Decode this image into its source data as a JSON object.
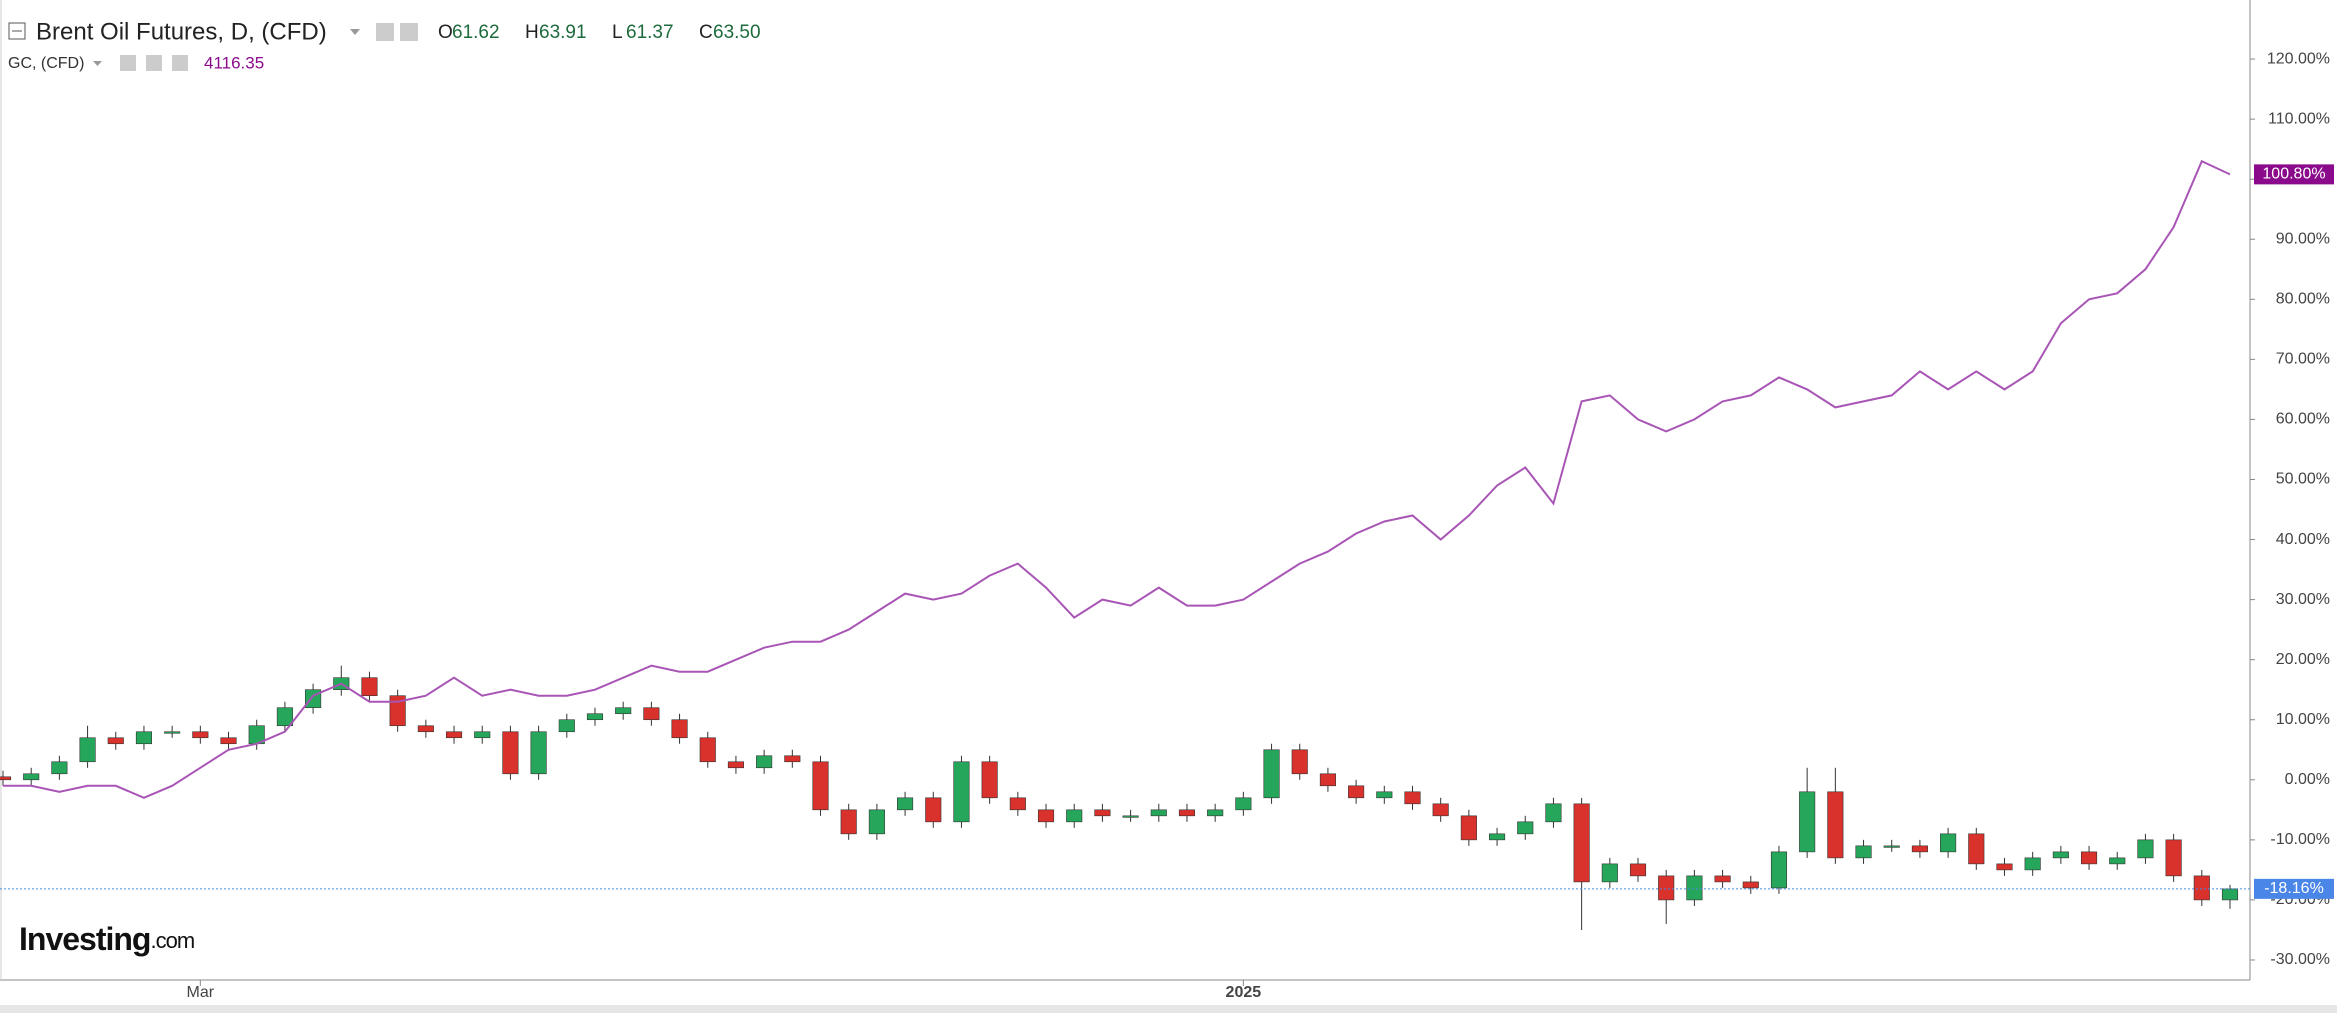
{
  "chart_data": {
    "type": "candlestick",
    "header": {
      "symbol": "Brent Oil Futures, D, (CFD)",
      "ohlc_labels": [
        "O",
        "H",
        "L",
        "C"
      ],
      "ohlc_values": [
        "61.62",
        "63.91",
        "61.37",
        "63.50"
      ],
      "compare_symbol": "GC, (CFD)",
      "compare_value": "4116.35"
    },
    "watermark": "Investing",
    "watermark_suffix": ".com",
    "categories": [
      null,
      null,
      null,
      null,
      null,
      null,
      null,
      "Mar",
      null,
      null,
      null,
      null,
      null,
      null,
      null,
      null,
      null,
      null,
      null,
      null,
      null,
      null,
      null,
      null,
      null,
      null,
      null,
      null,
      null,
      null,
      null,
      null,
      null,
      null,
      null,
      null,
      null,
      null,
      null,
      null,
      null,
      null,
      null,
      null,
      "2025",
      null,
      null,
      null,
      null,
      null,
      null,
      null,
      null,
      null,
      null,
      null,
      null,
      null,
      null,
      null,
      null,
      null,
      null,
      null,
      null,
      null,
      null,
      null,
      null,
      null,
      null,
      null,
      null,
      null,
      null,
      null,
      null,
      null,
      null,
      null
    ],
    "ylim": [
      -33,
      129
    ],
    "yticks": [
      {
        "value": -30,
        "label": "-30.00%"
      },
      {
        "value": -20,
        "label": "-20.00%"
      },
      {
        "value": -10,
        "label": "-10.00%"
      },
      {
        "value": 0,
        "label": "0.00%"
      },
      {
        "value": 10,
        "label": "10.00%"
      },
      {
        "value": 20,
        "label": "20.00%"
      },
      {
        "value": 30,
        "label": "30.00%"
      },
      {
        "value": 40,
        "label": "40.00%"
      },
      {
        "value": 50,
        "label": "50.00%"
      },
      {
        "value": 60,
        "label": "60.00%"
      },
      {
        "value": 70,
        "label": "70.00%"
      },
      {
        "value": 80,
        "label": "80.00%"
      },
      {
        "value": 90,
        "label": "90.00%"
      },
      {
        "value": 100,
        "label": "100.00%"
      },
      {
        "value": 110,
        "label": "110.00%"
      },
      {
        "value": 120,
        "label": "120.00%"
      }
    ],
    "series": [
      {
        "name": "Brent Oil Futures",
        "type": "candlestick",
        "up_color": "#26a65b",
        "down_color": "#d9312b",
        "last_color": "#4a86e8",
        "last_label": "-18.16%",
        "open": [
          0.5,
          0,
          1,
          3,
          7,
          6,
          8,
          8,
          7,
          6,
          9,
          12,
          15,
          17,
          14,
          9,
          8,
          7,
          8,
          1,
          8,
          10,
          11,
          12,
          10,
          7,
          3,
          2,
          4,
          3,
          -5,
          -9,
          -5,
          -3,
          -7,
          3,
          -3,
          -5,
          -7,
          -5,
          -6,
          -6,
          -5,
          -6,
          -5,
          -3,
          5,
          1,
          -1,
          -3,
          -2,
          -4,
          -6,
          -10,
          -9,
          -7,
          -4,
          -17,
          -14,
          -16,
          -20,
          -16,
          -17,
          -18,
          -12,
          -2,
          -13,
          -11,
          -11,
          -12,
          -9,
          -14,
          -15,
          -13,
          -12,
          -14,
          -13,
          -10,
          -16,
          -20
        ],
        "high": [
          1.5,
          2,
          4,
          9,
          8,
          9,
          9,
          9,
          8,
          10,
          13,
          16,
          19,
          18,
          15,
          10,
          9,
          9,
          9,
          9,
          11,
          12,
          13,
          13,
          11,
          8,
          4,
          5,
          5,
          4,
          -4,
          -4,
          -2,
          -2,
          4,
          4,
          -2,
          -4,
          -4,
          -4,
          -5,
          -4,
          -4,
          -4,
          -2,
          6,
          6,
          2,
          0,
          -1,
          -1,
          -3,
          -5,
          -8,
          -6,
          -3,
          -3,
          -13,
          -13,
          -15,
          -15,
          -15,
          -16,
          -11,
          2,
          2,
          -10,
          -10,
          -10,
          -8,
          -8,
          -13,
          -12,
          -11,
          -11,
          -12,
          -9,
          -9,
          -15,
          -17.5
        ],
        "low": [
          -1,
          -1,
          0,
          2,
          5,
          5,
          7,
          6,
          5,
          5,
          8,
          11,
          14,
          13,
          8,
          7,
          6,
          6,
          0,
          0,
          7,
          9,
          10,
          9,
          6,
          2,
          1,
          1,
          2,
          -6,
          -10,
          -10,
          -6,
          -8,
          -8,
          -4,
          -6,
          -8,
          -8,
          -7,
          -7,
          -7,
          -7,
          -7,
          -6,
          -4,
          0,
          -2,
          -4,
          -4,
          -5,
          -7,
          -11,
          -11,
          -10,
          -8,
          -25,
          -18,
          -17,
          -24,
          -21,
          -18,
          -19,
          -19,
          -13,
          -14,
          -14,
          -12,
          -13,
          -13,
          -15,
          -16,
          -16,
          -14,
          -15,
          -15,
          -14,
          -17,
          -21,
          -21.5
        ],
        "close": [
          0,
          1,
          3,
          7,
          6,
          8,
          8,
          7,
          6,
          9,
          12,
          15,
          17,
          14,
          9,
          8,
          7,
          8,
          1,
          8,
          10,
          11,
          12,
          10,
          7,
          3,
          2,
          4,
          3,
          -5,
          -9,
          -5,
          -3,
          -7,
          3,
          -3,
          -5,
          -7,
          -5,
          -6,
          -6,
          -5,
          -6,
          -5,
          -3,
          5,
          1,
          -1,
          -3,
          -2,
          -4,
          -6,
          -10,
          -9,
          -7,
          -4,
          -17,
          -14,
          -16,
          -20,
          -16,
          -17,
          -18,
          -12,
          -2,
          -13,
          -11,
          -11,
          -12,
          -9,
          -14,
          -15,
          -13,
          -12,
          -14,
          -13,
          -10,
          -16,
          -20,
          -18.16
        ]
      },
      {
        "name": "GC",
        "type": "line",
        "color": "#a855b5",
        "last_color": "#8b0a8b",
        "last_label": "100.80%",
        "values": [
          -1,
          -1,
          -2,
          -1,
          -1,
          -3,
          -1,
          2,
          5,
          6,
          8,
          14,
          16,
          13,
          13,
          14,
          17,
          14,
          15,
          14,
          14,
          15,
          17,
          19,
          18,
          18,
          20,
          22,
          23,
          23,
          25,
          28,
          31,
          30,
          31,
          34,
          36,
          32,
          27,
          30,
          29,
          32,
          29,
          29,
          30,
          33,
          36,
          38,
          41,
          43,
          44,
          40,
          44,
          49,
          52,
          46,
          63,
          64,
          60,
          58,
          60,
          63,
          64,
          67,
          65,
          62,
          63,
          64,
          68,
          65,
          68,
          65,
          68,
          76,
          80,
          81,
          85,
          92,
          103,
          100.8
        ]
      }
    ]
  }
}
